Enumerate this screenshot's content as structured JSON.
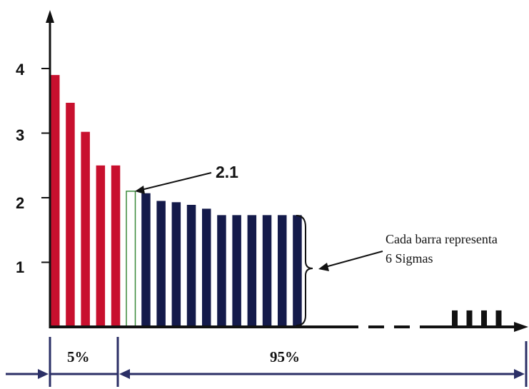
{
  "chart_data": {
    "type": "bar",
    "title": "",
    "xlabel": "",
    "ylabel": "",
    "y_ticks": [
      "1",
      "2",
      "3",
      "4"
    ],
    "ylim": [
      0,
      5
    ],
    "series": [
      {
        "values": [
          3.9,
          3.47,
          3.02,
          2.5,
          2.5,
          2.1,
          2.07,
          1.95,
          1.93,
          1.89,
          1.83,
          1.73,
          1.73,
          1.73,
          1.73,
          1.73,
          1.73
        ]
      }
    ],
    "bar_groups": [
      "red",
      "red",
      "red",
      "red",
      "red",
      "highlight",
      "navy",
      "navy",
      "navy",
      "navy",
      "navy",
      "navy",
      "navy",
      "navy",
      "navy",
      "navy",
      "navy"
    ],
    "tail_values": [
      0.3,
      0.3,
      0.3,
      0.3
    ],
    "colors": {
      "red": "#c8102e",
      "navy": "#141a4a",
      "highlight_outline": "#3a8a3a",
      "bracket_axis": "#2b2f66"
    },
    "annotations": {
      "highlight_value": "2.1",
      "brace_note_line1": "Cada barra representa",
      "brace_note_line2": "6 Sigmas"
    },
    "segments": [
      {
        "label": "5%"
      },
      {
        "label": "95%"
      }
    ]
  }
}
